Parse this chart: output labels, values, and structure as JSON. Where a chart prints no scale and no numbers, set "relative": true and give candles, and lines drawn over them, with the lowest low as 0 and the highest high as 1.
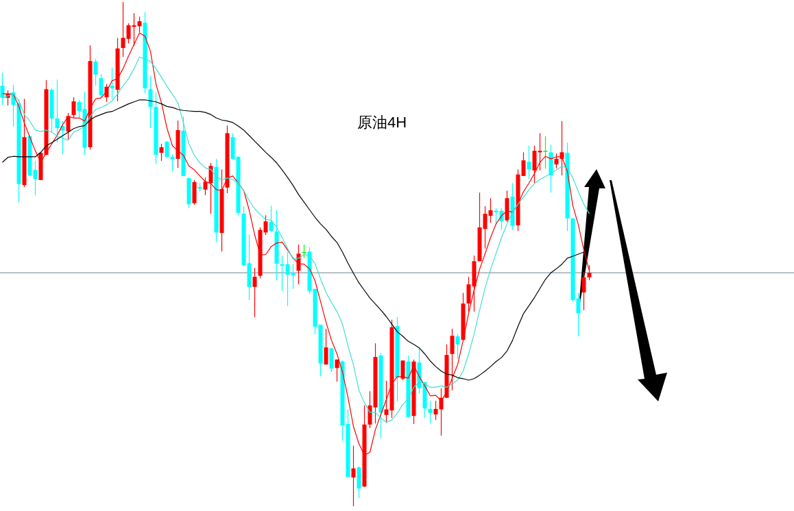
{
  "chart_data": {
    "type": "candlestick",
    "title": "原油4H",
    "relative": true,
    "categories": [
      null,
      null,
      null,
      null,
      null,
      null,
      null,
      null,
      null,
      null,
      null,
      null,
      null,
      null,
      null,
      null,
      null,
      null,
      null,
      null,
      null,
      null,
      null,
      null,
      null,
      null,
      null,
      null,
      null,
      null,
      null,
      null,
      null,
      null,
      null,
      null,
      null,
      null,
      null,
      null,
      null,
      null,
      null,
      null,
      null,
      null,
      null,
      null,
      null,
      null,
      null,
      null,
      null,
      null,
      null,
      null,
      null,
      null,
      null,
      null,
      null,
      null,
      null,
      null,
      null,
      null,
      null,
      null,
      null,
      null,
      null,
      null,
      null,
      null,
      null,
      null,
      null,
      null,
      null,
      null,
      null,
      null,
      null,
      null,
      null,
      null,
      null,
      null,
      null,
      null,
      null,
      null,
      null,
      null,
      null,
      null,
      null,
      null,
      null,
      null,
      null,
      null,
      null,
      null,
      null,
      null,
      null,
      null
    ],
    "ohlc": [
      [
        0.834,
        0.86,
        0.796,
        0.81
      ],
      [
        0.81,
        0.825,
        0.795,
        0.818
      ],
      [
        0.821,
        0.836,
        0.753,
        0.796
      ],
      [
        0.799,
        0.807,
        0.603,
        0.639
      ],
      [
        0.637,
        0.808,
        0.633,
        0.732
      ],
      [
        0.734,
        0.736,
        0.654,
        0.656
      ],
      [
        0.667,
        0.685,
        0.617,
        0.649
      ],
      [
        0.647,
        0.702,
        0.647,
        0.701
      ],
      [
        0.697,
        0.845,
        0.696,
        0.827
      ],
      [
        0.826,
        0.829,
        0.742,
        0.769
      ],
      [
        0.769,
        0.846,
        0.721,
        0.75
      ],
      [
        0.754,
        0.764,
        0.698,
        0.745
      ],
      [
        0.743,
        0.78,
        0.728,
        0.774
      ],
      [
        0.776,
        0.811,
        0.769,
        0.803
      ],
      [
        0.802,
        0.806,
        0.769,
        0.784
      ],
      [
        0.788,
        0.822,
        0.697,
        0.711
      ],
      [
        0.712,
        0.914,
        0.707,
        0.883
      ],
      [
        0.882,
        0.887,
        0.834,
        0.856
      ],
      [
        0.849,
        0.857,
        0.808,
        0.815
      ],
      [
        0.811,
        0.837,
        0.802,
        0.832
      ],
      [
        0.834,
        0.87,
        0.807,
        0.829
      ],
      [
        0.826,
        0.929,
        0.803,
        0.908
      ],
      [
        0.909,
        1,
        0.891,
        0.929
      ],
      [
        0.927,
        0.958,
        0.918,
        0.954
      ],
      [
        0.951,
        0.978,
        0.913,
        0.954
      ],
      [
        0.952,
        0.971,
        0.94,
        0.962
      ],
      [
        0.959,
        0.98,
        0.819,
        0.829
      ],
      [
        0.827,
        0.853,
        0.75,
        0.792
      ],
      [
        0.792,
        0.821,
        0.679,
        0.697
      ],
      [
        0.701,
        0.719,
        0.685,
        0.712
      ],
      [
        0.723,
        0.724,
        0.692,
        0.693
      ],
      [
        0.693,
        0.698,
        0.664,
        0.688
      ],
      [
        0.689,
        0.765,
        0.671,
        0.746
      ],
      [
        0.745,
        0.773,
        0.655,
        0.655
      ],
      [
        0.651,
        0.651,
        0.591,
        0.599
      ],
      [
        0.601,
        0.647,
        0.598,
        0.643
      ],
      [
        0.633,
        0.641,
        0.624,
        0.63
      ],
      [
        0.628,
        0.652,
        0.617,
        0.644
      ],
      [
        0.641,
        0.681,
        0.58,
        0.675
      ],
      [
        0.673,
        0.689,
        0.524,
        0.543
      ],
      [
        0.542,
        0.668,
        0.505,
        0.629
      ],
      [
        0.632,
        0.755,
        0.621,
        0.74
      ],
      [
        0.732,
        0.74,
        0.688,
        0.689
      ],
      [
        0.693,
        0.694,
        0.577,
        0.582
      ],
      [
        0.58,
        0.595,
        0.476,
        0.478
      ],
      [
        0.482,
        0.539,
        0.409,
        0.435
      ],
      [
        0.435,
        0.473,
        0.375,
        0.455
      ],
      [
        0.457,
        0.553,
        0.452,
        0.548
      ],
      [
        0.543,
        0.577,
        0.538,
        0.565
      ],
      [
        0.564,
        0.596,
        0.543,
        0.546
      ],
      [
        0.545,
        0.587,
        0.448,
        0.481
      ],
      [
        0.48,
        0.497,
        0.427,
        0.477
      ],
      [
        0.48,
        0.504,
        0.397,
        0.459
      ],
      [
        0.463,
        0.481,
        0.431,
        0.458
      ],
      [
        0.467,
        0.519,
        0.44,
        0.501
      ],
      [
        0.503,
        0.519,
        0.492,
        0.503
      ],
      [
        0.505,
        0.514,
        0.421,
        0.427
      ],
      [
        0.431,
        0.431,
        0.341,
        0.356
      ],
      [
        0.36,
        0.36,
        0.258,
        0.283
      ],
      [
        0.281,
        0.352,
        0.281,
        0.315
      ],
      [
        0.313,
        0.314,
        0.266,
        0.273
      ],
      [
        0.274,
        0.291,
        0.247,
        0.291
      ],
      [
        0.287,
        0.289,
        0.13,
        0.16
      ],
      [
        0.163,
        0.192,
        0.057,
        0.058
      ],
      [
        0.057,
        0.12,
        0,
        0.075
      ],
      [
        0.077,
        0.079,
        0.016,
        0.035
      ],
      [
        0.039,
        0.2,
        0.038,
        0.162
      ],
      [
        0.162,
        0.228,
        0.155,
        0.2
      ],
      [
        0.196,
        0.323,
        0.164,
        0.296
      ],
      [
        0.299,
        0.304,
        0.135,
        0.186
      ],
      [
        0.181,
        0.249,
        0.166,
        0.192
      ],
      [
        0.19,
        0.37,
        0.175,
        0.355
      ],
      [
        0.357,
        0.375,
        0.208,
        0.255
      ],
      [
        0.253,
        0.289,
        0.25,
        0.289
      ],
      [
        0.287,
        0.299,
        0.175,
        0.177
      ],
      [
        0.179,
        0.291,
        0.163,
        0.287
      ],
      [
        0.285,
        0.314,
        0.224,
        0.234
      ],
      [
        0.246,
        0.247,
        0.175,
        0.194
      ],
      [
        0.193,
        0.209,
        0.164,
        0.185
      ],
      [
        0.182,
        0.209,
        0.171,
        0.193
      ],
      [
        0.192,
        0.234,
        0.14,
        0.215
      ],
      [
        0.215,
        0.321,
        0.215,
        0.3
      ],
      [
        0.302,
        0.352,
        0.23,
        0.338
      ],
      [
        0.337,
        0.341,
        0.293,
        0.321
      ],
      [
        0.33,
        0.423,
        0.329,
        0.402
      ],
      [
        0.402,
        0.455,
        0.386,
        0.44
      ],
      [
        0.436,
        0.497,
        0.386,
        0.486
      ],
      [
        0.486,
        0.622,
        0.486,
        0.553
      ],
      [
        0.55,
        0.595,
        0.511,
        0.58
      ],
      [
        0.576,
        0.611,
        0.562,
        0.587
      ],
      [
        0.586,
        0.591,
        0.56,
        0.583
      ],
      [
        0.586,
        0.591,
        0.548,
        0.565
      ],
      [
        0.567,
        0.626,
        0.564,
        0.611
      ],
      [
        0.614,
        0.641,
        0.548,
        0.556
      ],
      [
        0.557,
        0.668,
        0.546,
        0.658
      ],
      [
        0.655,
        0.702,
        0.655,
        0.686
      ],
      [
        0.683,
        0.715,
        0.649,
        0.668
      ],
      [
        0.666,
        0.715,
        0.641,
        0.705
      ],
      [
        0.702,
        0.74,
        0.666,
        0.705
      ],
      [
        0.704,
        0.734,
        0.67,
        0.704
      ],
      [
        0.702,
        0.717,
        0.622,
        0.656
      ],
      [
        0.678,
        0.7,
        0.67,
        0.689
      ],
      [
        0.689,
        0.764,
        0.656,
        0.702
      ],
      [
        0.701,
        0.721,
        0.546,
        0.571
      ],
      [
        0.571,
        0.571,
        0.406,
        0.409
      ],
      [
        0.412,
        0.423,
        0.337,
        0.383
      ],
      [
        0.424,
        0.465,
        0.389,
        0.454
      ],
      [
        0.454,
        0.478,
        0.448,
        0.463
      ]
    ],
    "colors": [
      "#00ffff",
      "#ff0000",
      "#00ffff",
      "#00ffff",
      "#ff0000",
      "#00ffff",
      "#00ffff",
      "#ff0000",
      "#ff0000",
      "#00ffff",
      "#00ffff",
      "#00ffff",
      "#ff0000",
      "#ff0000",
      "#00ffff",
      "#00ffff",
      "#ff0000",
      "#00ffff",
      "#00ffff",
      "#ff0000",
      "#00ffff",
      "#ff0000",
      "#ff0000",
      "#ff0000",
      "#ff0000",
      "#ff0000",
      "#00ffff",
      "#00ffff",
      "#00ffff",
      "#ff0000",
      "#00ffff",
      "#00ffff",
      "#ff0000",
      "#00ffff",
      "#00ffff",
      "#ff0000",
      "#00ffff",
      "#ff0000",
      "#ff0000",
      "#00ffff",
      "#ff0000",
      "#ff0000",
      "#00ffff",
      "#00ffff",
      "#00ffff",
      "#00ffff",
      "#ff0000",
      "#ff0000",
      "#ff0000",
      "#00ffff",
      "#00ffff",
      "#00ffff",
      "#00ffff",
      "#00ffff",
      "#ff0000",
      "#00ff00",
      "#00ffff",
      "#00ffff",
      "#00ffff",
      "#ff0000",
      "#00ffff",
      "#ff0000",
      "#00ffff",
      "#00ffff",
      "#ff0000",
      "#00ffff",
      "#ff0000",
      "#ff0000",
      "#ff0000",
      "#00ffff",
      "#ff0000",
      "#ff0000",
      "#00ffff",
      "#ff0000",
      "#00ffff",
      "#ff0000",
      "#00ffff",
      "#00ffff",
      "#00ffff",
      "#ff0000",
      "#ff0000",
      "#ff0000",
      "#ff0000",
      "#00ffff",
      "#ff0000",
      "#ff0000",
      "#ff0000",
      "#ff0000",
      "#ff0000",
      "#ff0000",
      "#00ffff",
      "#00ffff",
      "#ff0000",
      "#00ffff",
      "#ff0000",
      "#ff0000",
      "#00ffff",
      "#ff0000",
      "#ff0000",
      "#00ff00",
      "#00ffff",
      "#ff0000",
      "#ff0000",
      "#00ffff",
      "#00ffff",
      "#00ffff",
      "#ff0000",
      "#ff0000"
    ],
    "series": [
      {
        "type": "line",
        "color": "#ff0000",
        "values": [
          0.818,
          0.818,
          0.817,
          0.793,
          0.76,
          0.732,
          0.705,
          0.682,
          0.701,
          0.719,
          0.736,
          0.757,
          0.773,
          0.77,
          0.77,
          0.764,
          0.789,
          0.808,
          0.81,
          0.823,
          0.844,
          0.848,
          0.868,
          0.893,
          0.916,
          0.939,
          0.932,
          0.902,
          0.837,
          0.8,
          0.75,
          0.715,
          0.705,
          0.696,
          0.675,
          0.667,
          0.655,
          0.644,
          0.64,
          0.628,
          0.626,
          0.651,
          0.655,
          0.641,
          0.626,
          0.587,
          0.538,
          0.499,
          0.499,
          0.515,
          0.522,
          0.524,
          0.508,
          0.492,
          0.481,
          0.48,
          0.471,
          0.447,
          0.406,
          0.365,
          0.329,
          0.302,
          0.266,
          0.216,
          0.158,
          0.124,
          0.101,
          0.107,
          0.152,
          0.182,
          0.212,
          0.243,
          0.257,
          0.257,
          0.254,
          0.279,
          0.257,
          0.239,
          0.219,
          0.22,
          0.209,
          0.226,
          0.254,
          0.281,
          0.329,
          0.383,
          0.429,
          0.47,
          0.501,
          0.533,
          0.56,
          0.576,
          0.586,
          0.583,
          0.599,
          0.624,
          0.641,
          0.66,
          0.682,
          0.694,
          0.689,
          0.693,
          0.693,
          0.664,
          0.596,
          0.558,
          0.508,
          0.467
        ]
      },
      {
        "type": "line",
        "color": "#40e0d0",
        "values": [
          0.81,
          0.814,
          0.818,
          0.804,
          0.777,
          0.764,
          0.746,
          0.743,
          0.746,
          0.742,
          0.734,
          0.73,
          0.726,
          0.742,
          0.747,
          0.754,
          0.773,
          0.787,
          0.791,
          0.796,
          0.804,
          0.818,
          0.834,
          0.848,
          0.868,
          0.891,
          0.887,
          0.882,
          0.868,
          0.851,
          0.833,
          0.817,
          0.8,
          0.76,
          0.719,
          0.696,
          0.681,
          0.671,
          0.668,
          0.654,
          0.647,
          0.651,
          0.648,
          0.641,
          0.626,
          0.606,
          0.59,
          0.579,
          0.569,
          0.567,
          0.553,
          0.533,
          0.511,
          0.49,
          0.492,
          0.499,
          0.497,
          0.481,
          0.451,
          0.424,
          0.404,
          0.386,
          0.361,
          0.318,
          0.28,
          0.23,
          0.205,
          0.186,
          0.186,
          0.175,
          0.166,
          0.171,
          0.185,
          0.202,
          0.213,
          0.236,
          0.246,
          0.243,
          0.236,
          0.236,
          0.239,
          0.236,
          0.243,
          0.25,
          0.268,
          0.302,
          0.342,
          0.389,
          0.433,
          0.47,
          0.501,
          0.533,
          0.56,
          0.583,
          0.599,
          0.613,
          0.628,
          0.64,
          0.648,
          0.654,
          0.66,
          0.667,
          0.674,
          0.671,
          0.651,
          0.624,
          0.599,
          0.58
        ]
      },
      {
        "type": "line",
        "color": "#000000",
        "values": [
          0.682,
          0.692,
          0.694,
          0.693,
          0.693,
          0.693,
          0.693,
          0.702,
          0.715,
          0.721,
          0.728,
          0.735,
          0.742,
          0.749,
          0.753,
          0.755,
          0.766,
          0.773,
          0.777,
          0.781,
          0.783,
          0.788,
          0.793,
          0.798,
          0.802,
          0.806,
          0.806,
          0.804,
          0.802,
          0.798,
          0.793,
          0.791,
          0.787,
          0.785,
          0.784,
          0.783,
          0.783,
          0.781,
          0.777,
          0.77,
          0.766,
          0.764,
          0.761,
          0.754,
          0.746,
          0.735,
          0.724,
          0.713,
          0.702,
          0.692,
          0.681,
          0.667,
          0.652,
          0.636,
          0.618,
          0.603,
          0.588,
          0.573,
          0.56,
          0.549,
          0.535,
          0.523,
          0.504,
          0.482,
          0.462,
          0.443,
          0.428,
          0.413,
          0.401,
          0.389,
          0.376,
          0.361,
          0.346,
          0.337,
          0.327,
          0.321,
          0.314,
          0.302,
          0.288,
          0.277,
          0.268,
          0.262,
          0.26,
          0.255,
          0.253,
          0.25,
          0.253,
          0.26,
          0.268,
          0.277,
          0.287,
          0.295,
          0.308,
          0.329,
          0.357,
          0.382,
          0.398,
          0.414,
          0.432,
          0.45,
          0.463,
          0.471,
          0.48,
          0.492,
          0.496,
          0.5,
          0.504,
          null
        ]
      }
    ],
    "ref_lines": [
      {
        "axis": "y",
        "value": 0.463,
        "color": "#708090"
      }
    ]
  }
}
